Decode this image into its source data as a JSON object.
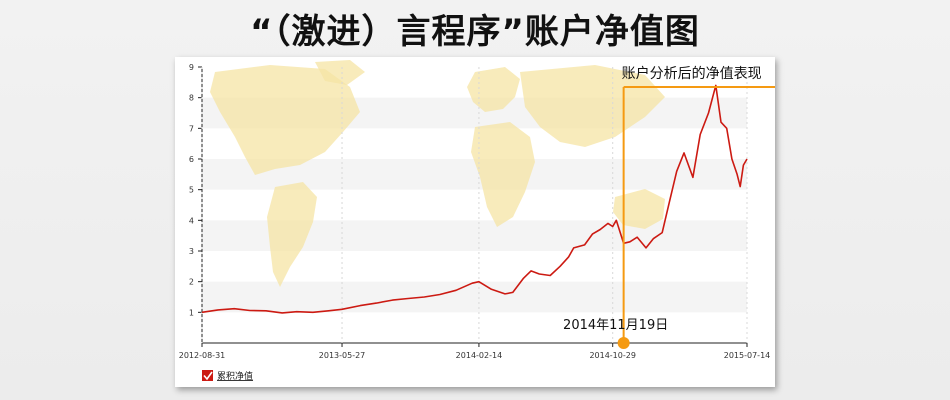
{
  "page": {
    "title": "“（激进）言程序”账户净值图"
  },
  "annotations": {
    "callout": "账户分析后的净值表现",
    "marker_date": "2014年11月19日"
  },
  "legend": {
    "label": "累积净值",
    "checked": true
  },
  "colors": {
    "series": "#cc1a12",
    "annotation": "#f59a12",
    "map": "#f6e4a4",
    "band": "#f4f4f4"
  },
  "chart_data": {
    "type": "line",
    "x_tick_labels": [
      "2012-08-31",
      "2013-05-27",
      "2014-02-14",
      "2014-10-29",
      "2015-07-14"
    ],
    "y_tick_labels": [
      "1",
      "2",
      "3",
      "4",
      "5",
      "6",
      "7",
      "8",
      "9"
    ],
    "ylim": [
      0,
      9
    ],
    "xlim": [
      "2012-08-31",
      "2015-07-14"
    ],
    "grid": "alternating horizontal bands",
    "legend": "bottom-left",
    "series": [
      {
        "name": "累积净值",
        "points": [
          [
            "2012-08-31",
            1.0
          ],
          [
            "2012-10-01",
            1.08
          ],
          [
            "2012-11-01",
            1.12
          ],
          [
            "2012-12-01",
            1.06
          ],
          [
            "2013-01-01",
            1.05
          ],
          [
            "2013-02-01",
            0.98
          ],
          [
            "2013-03-01",
            1.02
          ],
          [
            "2013-04-01",
            1.0
          ],
          [
            "2013-05-01",
            1.05
          ],
          [
            "2013-05-27",
            1.1
          ],
          [
            "2013-07-01",
            1.22
          ],
          [
            "2013-08-01",
            1.3
          ],
          [
            "2013-09-01",
            1.4
          ],
          [
            "2013-10-01",
            1.45
          ],
          [
            "2013-11-01",
            1.5
          ],
          [
            "2013-12-01",
            1.58
          ],
          [
            "2014-01-01",
            1.72
          ],
          [
            "2014-02-01",
            1.95
          ],
          [
            "2014-02-14",
            2.0
          ],
          [
            "2014-03-10",
            1.75
          ],
          [
            "2014-04-05",
            1.6
          ],
          [
            "2014-04-20",
            1.65
          ],
          [
            "2014-05-10",
            2.1
          ],
          [
            "2014-05-25",
            2.35
          ],
          [
            "2014-06-10",
            2.25
          ],
          [
            "2014-07-01",
            2.2
          ],
          [
            "2014-07-20",
            2.5
          ],
          [
            "2014-08-05",
            2.8
          ],
          [
            "2014-08-15",
            3.1
          ],
          [
            "2014-09-05",
            3.2
          ],
          [
            "2014-09-20",
            3.55
          ],
          [
            "2014-10-05",
            3.7
          ],
          [
            "2014-10-20",
            3.9
          ],
          [
            "2014-10-29",
            3.8
          ],
          [
            "2014-11-05",
            4.0
          ],
          [
            "2014-11-19",
            3.25
          ],
          [
            "2014-12-01",
            3.3
          ],
          [
            "2014-12-15",
            3.45
          ],
          [
            "2015-01-01",
            3.1
          ],
          [
            "2015-01-15",
            3.4
          ],
          [
            "2015-02-01",
            3.6
          ],
          [
            "2015-02-15",
            4.6
          ],
          [
            "2015-03-01",
            5.6
          ],
          [
            "2015-03-15",
            6.2
          ],
          [
            "2015-04-01",
            5.4
          ],
          [
            "2015-04-15",
            6.8
          ],
          [
            "2015-05-01",
            7.5
          ],
          [
            "2015-05-15",
            8.4
          ],
          [
            "2015-05-25",
            7.2
          ],
          [
            "2015-06-05",
            7.0
          ],
          [
            "2015-06-15",
            6.0
          ],
          [
            "2015-06-25",
            5.5
          ],
          [
            "2015-07-01",
            5.1
          ],
          [
            "2015-07-07",
            5.8
          ],
          [
            "2015-07-14",
            6.0
          ]
        ]
      }
    ]
  }
}
